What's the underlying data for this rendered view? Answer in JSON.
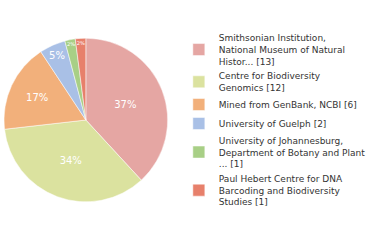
{
  "chart_data": {
    "type": "pie",
    "categories": [
      "Smithsonian Institution, National Museum of Natural Histor... [13]",
      "Centre for Biodiversity Genomics [12]",
      "Mined from GenBank, NCBI [6]",
      "University of Guelph [2]",
      "University of Johannesburg, Department of Botany and Plant ... [1]",
      "Paul Hebert Centre for DNA Barcoding and Biodiversity Studies [1]"
    ],
    "values": [
      37,
      34,
      17,
      5,
      2,
      2
    ],
    "value_labels": [
      "37%",
      "34%",
      "17%",
      "5%",
      "2%",
      "2%"
    ],
    "colors": [
      "#e5a6a3",
      "#dbe29f",
      "#f2b07b",
      "#a9c0e6",
      "#a8cf86",
      "#e7806b"
    ],
    "data_labels": true,
    "legend": "right"
  }
}
